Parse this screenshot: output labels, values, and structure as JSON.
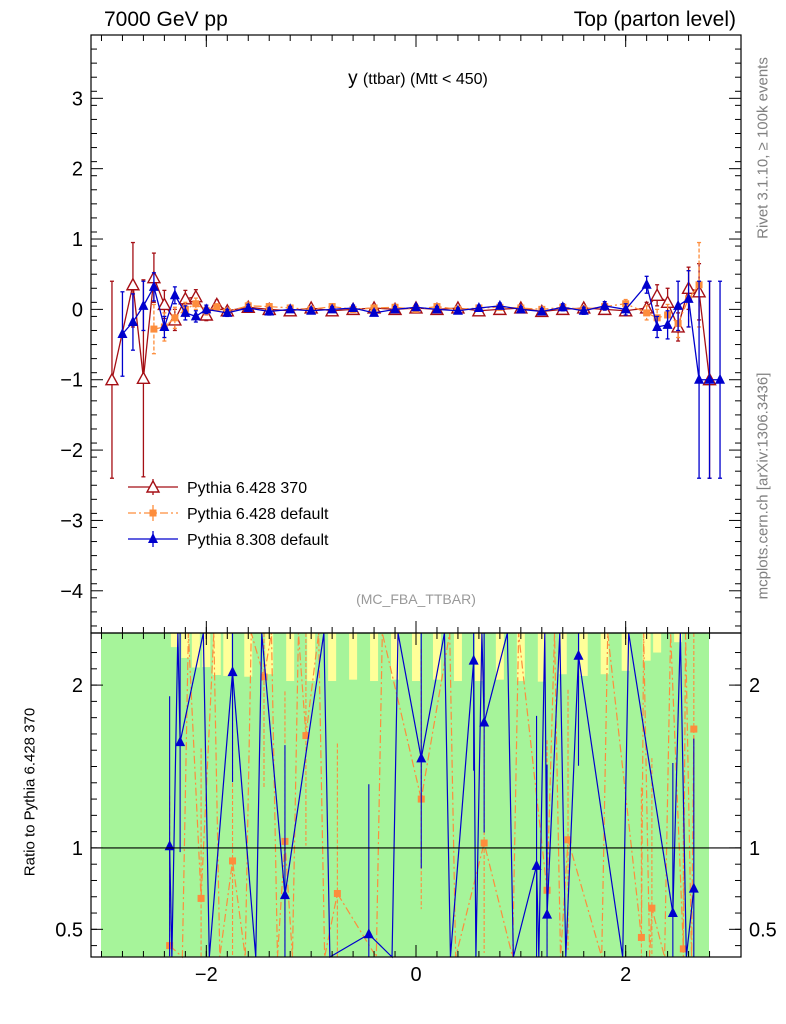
{
  "header": {
    "left": "7000 GeV pp",
    "right": "Top (parton level)"
  },
  "side": {
    "rivet": "Rivet 3.1.10, ≥ 100k events",
    "mcplots": "mcplots.cern.ch [arXiv:1306.3436]"
  },
  "chart_data": {
    "type": "scatter",
    "title_main": "y",
    "title_sub": "(ttbar) (Mtt < 450)",
    "watermark": "(MC_FBA_TTBAR)",
    "legend_position": "lower-left",
    "main_panel": {
      "ylim": [
        -4.6,
        3.9
      ],
      "y_ticks": [
        -4,
        -3,
        -2,
        -1,
        0,
        1,
        2,
        3
      ],
      "y_tick_labels": [
        "−4",
        "−3",
        "−2",
        "−1",
        "0",
        "1",
        "2",
        "3"
      ]
    },
    "ratio_panel": {
      "ylabel": "Ratio to Pythia 6.428 370",
      "ylim": [
        0.33,
        2.32
      ],
      "y_ticks": [
        0.5,
        1,
        2
      ],
      "y_tick_labels": [
        "0.5",
        "1",
        "2"
      ]
    },
    "x_axis": {
      "xlim": [
        -3.1,
        3.1
      ],
      "x_ticks": [
        -2,
        0,
        2
      ],
      "x_tick_labels": [
        "−2",
        "0",
        "2"
      ]
    },
    "series": [
      {
        "name": "Pythia 6.428 370",
        "color": "#a50f15",
        "marker": "open-triangle",
        "line": "solid",
        "x": [
          -2.9,
          -2.7,
          -2.6,
          -2.5,
          -2.4,
          -2.3,
          -2.2,
          -2.1,
          -2.0,
          -1.9,
          -1.8,
          -1.6,
          -1.4,
          -1.2,
          -1.0,
          -0.8,
          -0.6,
          -0.4,
          -0.2,
          0.0,
          0.2,
          0.4,
          0.6,
          0.8,
          1.0,
          1.2,
          1.4,
          1.6,
          1.8,
          2.0,
          2.2,
          2.3,
          2.4,
          2.5,
          2.6,
          2.7,
          2.8
        ],
        "y": [
          -1.0,
          0.35,
          -0.98,
          0.45,
          0.07,
          -0.15,
          0.15,
          0.18,
          -0.08,
          0.07,
          -0.02,
          0.03,
          0.0,
          -0.02,
          0.02,
          -0.02,
          0.0,
          0.02,
          0.0,
          0.02,
          0.0,
          0.02,
          -0.02,
          0.0,
          0.02,
          -0.03,
          0.0,
          0.02,
          0.0,
          -0.02,
          0.02,
          0.2,
          0.1,
          -0.25,
          0.3,
          0.25,
          -1.0
        ],
        "err": [
          1.4,
          0.6,
          1.4,
          0.35,
          0.2,
          0.15,
          0.12,
          0.1,
          0.08,
          0.06,
          0.05,
          0.05,
          0.05,
          0.04,
          0.04,
          0.04,
          0.04,
          0.04,
          0.04,
          0.04,
          0.04,
          0.04,
          0.04,
          0.04,
          0.04,
          0.04,
          0.05,
          0.05,
          0.05,
          0.06,
          0.08,
          0.15,
          0.2,
          0.2,
          0.3,
          0.4,
          1.4
        ]
      },
      {
        "name": "Pythia 6.428 default",
        "color": "#fd8d3c",
        "marker": "square",
        "line": "dashdot",
        "x": [
          -2.5,
          -2.4,
          -2.3,
          -2.2,
          -2.1,
          -2.0,
          -1.9,
          -1.8,
          -1.6,
          -1.4,
          -1.2,
          -1.0,
          -0.8,
          -0.6,
          -0.4,
          -0.2,
          0.0,
          0.2,
          0.4,
          0.6,
          0.8,
          1.0,
          1.2,
          1.4,
          1.6,
          1.8,
          2.0,
          2.2,
          2.3,
          2.4,
          2.5,
          2.6,
          2.7
        ],
        "y": [
          -0.28,
          -0.25,
          -0.12,
          0.0,
          0.08,
          -0.02,
          0.03,
          -0.03,
          0.05,
          0.04,
          0.02,
          0.0,
          0.04,
          0.0,
          0.02,
          0.03,
          0.0,
          0.04,
          0.0,
          0.02,
          0.03,
          0.02,
          0.0,
          0.03,
          0.0,
          0.04,
          0.08,
          -0.05,
          -0.12,
          -0.08,
          -0.2,
          0.15,
          0.35
        ],
        "err": [
          0.35,
          0.2,
          0.15,
          0.1,
          0.08,
          0.06,
          0.05,
          0.05,
          0.05,
          0.04,
          0.04,
          0.04,
          0.04,
          0.04,
          0.04,
          0.04,
          0.04,
          0.04,
          0.04,
          0.04,
          0.04,
          0.04,
          0.04,
          0.04,
          0.05,
          0.05,
          0.06,
          0.1,
          0.12,
          0.15,
          0.2,
          0.4,
          0.6
        ]
      },
      {
        "name": "Pythia 8.308 default",
        "color": "#0000cd",
        "marker": "triangle",
        "line": "solid",
        "x": [
          -2.8,
          -2.7,
          -2.6,
          -2.5,
          -2.4,
          -2.3,
          -2.2,
          -2.1,
          -2.0,
          -1.8,
          -1.6,
          -1.4,
          -1.2,
          -1.0,
          -0.8,
          -0.6,
          -0.4,
          -0.2,
          0.0,
          0.2,
          0.4,
          0.6,
          0.8,
          1.0,
          1.2,
          1.4,
          1.6,
          1.8,
          2.0,
          2.2,
          2.3,
          2.4,
          2.5,
          2.6,
          2.7,
          2.8,
          2.9
        ],
        "y": [
          -0.35,
          -0.18,
          0.05,
          0.32,
          -0.25,
          0.2,
          -0.05,
          -0.1,
          0.0,
          -0.05,
          0.02,
          -0.03,
          0.0,
          -0.02,
          0.0,
          0.02,
          -0.05,
          0.0,
          0.03,
          0.0,
          -0.02,
          0.02,
          0.05,
          0.0,
          -0.03,
          0.03,
          -0.02,
          0.05,
          0.0,
          0.35,
          -0.25,
          -0.22,
          0.05,
          0.15,
          -1.0,
          -1.0,
          -1.0
        ],
        "err": [
          0.6,
          0.4,
          0.35,
          0.2,
          0.15,
          0.12,
          0.1,
          0.08,
          0.06,
          0.05,
          0.05,
          0.05,
          0.04,
          0.04,
          0.04,
          0.04,
          0.04,
          0.04,
          0.04,
          0.04,
          0.04,
          0.04,
          0.04,
          0.04,
          0.04,
          0.05,
          0.05,
          0.06,
          0.08,
          0.12,
          0.15,
          0.2,
          0.35,
          0.4,
          1.4,
          1.4,
          1.4
        ]
      }
    ],
    "ratio_series": [
      {
        "name": "Pythia 6.428 default",
        "x": [
          -2.35,
          -2.05,
          -1.75,
          -1.45,
          -1.25,
          -1.05,
          -0.75,
          0.05,
          0.65,
          1.25,
          1.45,
          2.15,
          2.25,
          2.55,
          2.65
        ],
        "y": [
          0.4,
          0.69,
          0.92,
          2.05,
          1.04,
          1.69,
          0.72,
          1.3,
          1.03,
          0.74,
          1.05,
          0.45,
          0.63,
          0.38,
          1.73
        ]
      },
      {
        "name": "Pythia 8.308 default",
        "x": [
          -2.35,
          -2.25,
          -1.75,
          -1.25,
          -0.45,
          0.05,
          0.55,
          0.65,
          1.15,
          1.25,
          1.55,
          2.45,
          2.65
        ],
        "y": [
          1.01,
          1.65,
          2.08,
          0.71,
          0.47,
          1.55,
          2.15,
          1.77,
          0.89,
          0.59,
          2.18,
          0.6,
          0.75
        ]
      }
    ]
  }
}
